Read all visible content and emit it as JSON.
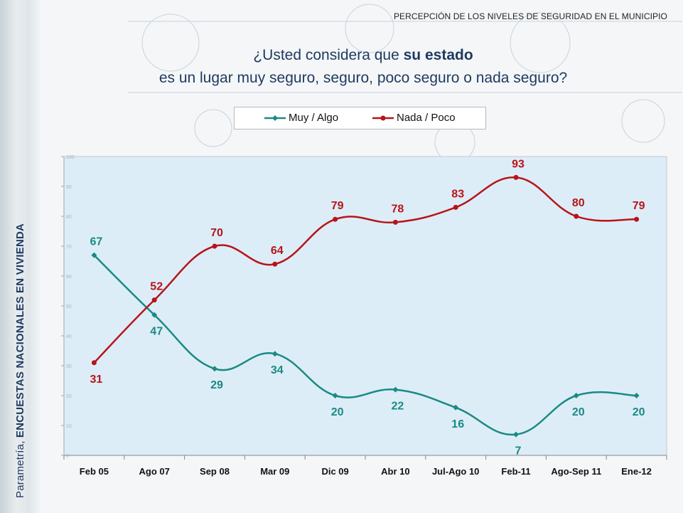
{
  "header": {
    "section_title": "PERCEPCIÓN DE LOS NIVELES DE SEGURIDAD EN EL MUNICIPIO",
    "question_line1_plain": "¿Usted considera que ",
    "question_line1_bold": "su estado",
    "question_line2": "es un lugar muy seguro, seguro, poco seguro o nada seguro?"
  },
  "sidebar": {
    "brand": "Parametría,",
    "caption": "ENCUESTAS NACIONALES EN VIVIENDA"
  },
  "colors": {
    "series_muy": "#1a8a82",
    "series_nada": "#b81418",
    "plot_bg": "#dcedf8"
  },
  "chart_data": {
    "type": "line",
    "title": "¿Usted considera que su estado es un lugar muy seguro, seguro, poco seguro o nada seguro?",
    "categories": [
      "Feb 05",
      "Ago 07",
      "Sep 08",
      "Mar 09",
      "Dic 09",
      "Abr 10",
      "Jul-Ago 10",
      "Feb-11",
      "Ago-Sep 11",
      "Ene-12"
    ],
    "series": [
      {
        "name": "Muy / Algo",
        "values": [
          67,
          47,
          29,
          34,
          20,
          22,
          16,
          7,
          20,
          20
        ]
      },
      {
        "name": "Nada / Poco",
        "values": [
          31,
          52,
          70,
          64,
          79,
          78,
          83,
          93,
          80,
          79
        ]
      }
    ],
    "ylim": [
      0,
      100
    ],
    "xlabel": "",
    "ylabel": "",
    "legend_position": "top-center",
    "grid": false
  }
}
